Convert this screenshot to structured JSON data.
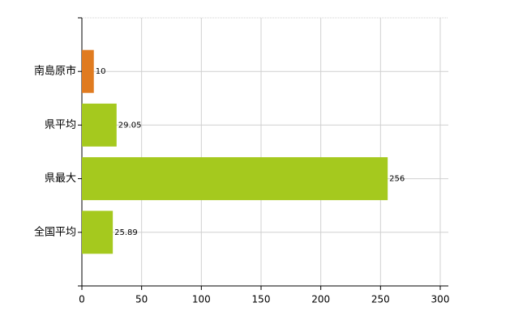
{
  "chart_data": {
    "type": "bar",
    "orientation": "horizontal",
    "categories": [
      "南島原市",
      "県平均",
      "県最大",
      "全国平均"
    ],
    "values": [
      10,
      29.05,
      256,
      25.89
    ],
    "colors": [
      "#e07b20",
      "#a5c91e",
      "#a5c91e",
      "#a5c91e"
    ],
    "xlim": [
      0,
      300
    ],
    "xticks": [
      0,
      50,
      100,
      150,
      200,
      250,
      300
    ],
    "grid": true
  }
}
